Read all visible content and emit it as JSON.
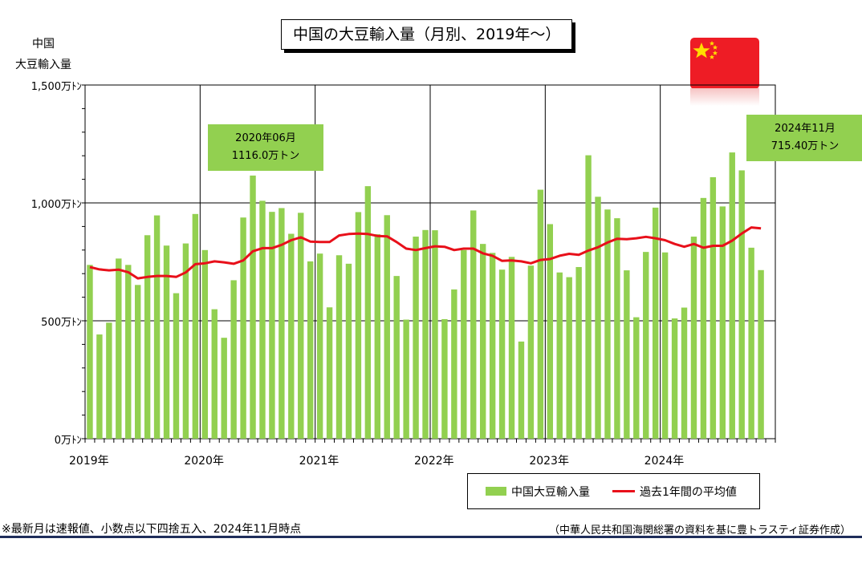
{
  "title": "中国の大豆輸入量（月別、2019年～）",
  "y_axis_title_line1": "中国",
  "y_axis_title_line2": "大豆輸入量",
  "callouts": {
    "peak_line1": "2020年06月",
    "peak_line2": "1116.0万トン",
    "latest_line1": "2024年11月",
    "latest_line2": "715.40万トン"
  },
  "legend": {
    "bars": "中国大豆輸入量",
    "line": "過去1年間の平均値"
  },
  "footer": {
    "note": "※最新月は速報値、小数点以下四捨五入、2024年11月時点",
    "source": "（中華人民共和国海関総署の資料を基に豊トラスティ証券作成）"
  },
  "colors": {
    "bar": "#92d050",
    "line": "#e8101a",
    "callout": "#92d050",
    "flag_red": "#ee1c25",
    "flag_star": "#ffde00",
    "rule": "#1f2d5a"
  },
  "flag_icon": "china-flag-icon",
  "chart_data": {
    "type": "bar",
    "title": "中国の大豆輸入量（月別、2019年～）",
    "ylabel": "中国 大豆輸入量",
    "ylim": [
      0,
      1500
    ],
    "yticks": [
      {
        "value": 0,
        "label": "0万ﾄﾝ"
      },
      {
        "value": 500,
        "label": "500万ﾄﾝ"
      },
      {
        "value": 1000,
        "label": "1,000万ﾄﾝ"
      },
      {
        "value": 1500,
        "label": "1,500万ﾄﾝ"
      }
    ],
    "xticks": [
      "2019年",
      "2020年",
      "2021年",
      "2022年",
      "2023年",
      "2024年"
    ],
    "grid": true,
    "legend_position": "bottom-right",
    "categories": [
      "2019-01",
      "2019-02",
      "2019-03",
      "2019-04",
      "2019-05",
      "2019-06",
      "2019-07",
      "2019-08",
      "2019-09",
      "2019-10",
      "2019-11",
      "2019-12",
      "2020-01",
      "2020-02",
      "2020-03",
      "2020-04",
      "2020-05",
      "2020-06",
      "2020-07",
      "2020-08",
      "2020-09",
      "2020-10",
      "2020-11",
      "2020-12",
      "2021-01",
      "2021-02",
      "2021-03",
      "2021-04",
      "2021-05",
      "2021-06",
      "2021-07",
      "2021-08",
      "2021-09",
      "2021-10",
      "2021-11",
      "2021-12",
      "2022-01",
      "2022-02",
      "2022-03",
      "2022-04",
      "2022-05",
      "2022-06",
      "2022-07",
      "2022-08",
      "2022-09",
      "2022-10",
      "2022-11",
      "2022-12",
      "2023-01",
      "2023-02",
      "2023-03",
      "2023-04",
      "2023-05",
      "2023-06",
      "2023-07",
      "2023-08",
      "2023-09",
      "2023-10",
      "2023-11",
      "2023-12",
      "2024-01",
      "2024-02",
      "2024-03",
      "2024-04",
      "2024-05",
      "2024-06",
      "2024-07",
      "2024-08",
      "2024-09",
      "2024-10",
      "2024-11"
    ],
    "series": [
      {
        "name": "中国大豆輸入量",
        "type": "bar",
        "values": [
          737,
          442,
          492,
          764,
          737,
          652,
          863,
          947,
          819,
          617,
          828,
          953,
          800,
          549,
          428,
          672,
          938,
          1116,
          1009,
          962,
          978,
          869,
          958,
          752,
          785,
          557,
          778,
          742,
          961,
          1071,
          867,
          948,
          690,
          505,
          857,
          885,
          884,
          507,
          633,
          800,
          968,
          826,
          788,
          717,
          771,
          412,
          734,
          1056,
          910,
          705,
          685,
          728,
          1202,
          1026,
          972,
          935,
          714,
          515,
          792,
          980,
          790,
          510,
          556,
          857,
          1021,
          1109,
          985,
          1214,
          1138,
          810,
          715
        ]
      },
      {
        "name": "過去1年間の平均値",
        "type": "line",
        "values": [
          728,
          718,
          714,
          717,
          706,
          680,
          686,
          690,
          690,
          686,
          705,
          740,
          744,
          752,
          748,
          742,
          756,
          795,
          808,
          808,
          822,
          842,
          854,
          836,
          834,
          834,
          862,
          868,
          870,
          868,
          860,
          858,
          834,
          806,
          800,
          808,
          816,
          814,
          800,
          806,
          806,
          786,
          776,
          754,
          756,
          752,
          744,
          758,
          762,
          776,
          784,
          780,
          798,
          812,
          832,
          848,
          846,
          850,
          856,
          850,
          842,
          826,
          814,
          826,
          810,
          818,
          818,
          840,
          870,
          896,
          892
        ]
      }
    ]
  }
}
